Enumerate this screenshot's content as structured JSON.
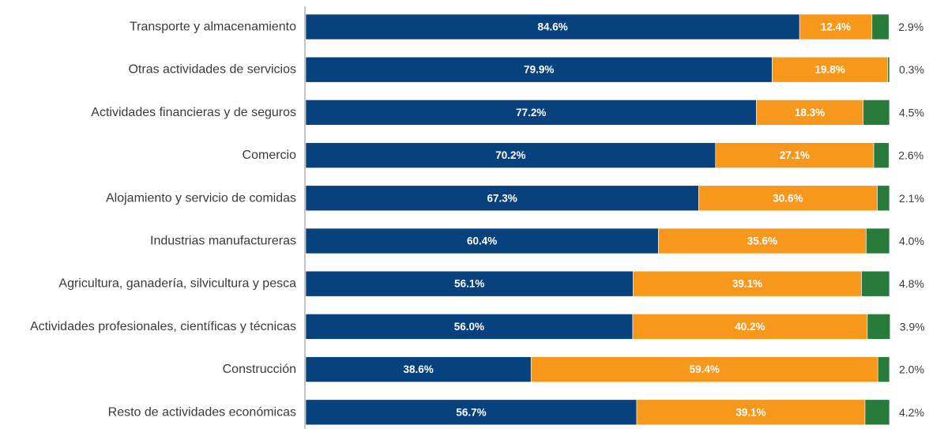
{
  "chart_data": {
    "type": "bar",
    "orientation": "horizontal",
    "stacked": true,
    "title": "",
    "xlabel": "",
    "ylabel": "",
    "xlim": [
      0,
      100
    ],
    "grid": false,
    "legend": "none",
    "categories": [
      "Transporte y almacenamiento",
      "Otras actividades de servicios",
      "Actividades financieras y de seguros",
      "Comercio",
      "Alojamiento y servicio de comidas",
      "Industrias manufactureras",
      "Agricultura, ganadería, silvicultura y pesca",
      "Actividades profesionales, científicas y técnicas",
      "Construcción",
      "Resto de actividades económicas"
    ],
    "series": [
      {
        "color": "#08427e",
        "values": [
          84.6,
          79.9,
          77.2,
          70.2,
          67.3,
          60.4,
          56.1,
          56.0,
          38.6,
          56.7
        ],
        "labels": [
          "84.6%",
          "79.9%",
          "77.2%",
          "70.2%",
          "67.3%",
          "60.4%",
          "56.1%",
          "56.0%",
          "38.6%",
          "56.7%"
        ],
        "label_position": "inside"
      },
      {
        "color": "#f7981d",
        "values": [
          12.4,
          19.8,
          18.3,
          27.1,
          30.6,
          35.6,
          39.1,
          40.2,
          59.4,
          39.1
        ],
        "labels": [
          "12.4%",
          "19.8%",
          "18.3%",
          "27.1%",
          "30.6%",
          "35.6%",
          "39.1%",
          "40.2%",
          "59.4%",
          "39.1%"
        ],
        "label_position": "inside"
      },
      {
        "color": "#287b3a",
        "values": [
          2.9,
          0.3,
          4.5,
          2.6,
          2.1,
          4.0,
          4.8,
          3.9,
          2.0,
          4.2
        ],
        "labels": [
          "2.9%",
          "0.3%",
          "4.5%",
          "2.6%",
          "2.1%",
          "4.0%",
          "4.8%",
          "3.9%",
          "2.0%",
          "4.2%"
        ],
        "label_position": "outside-end"
      }
    ]
  }
}
